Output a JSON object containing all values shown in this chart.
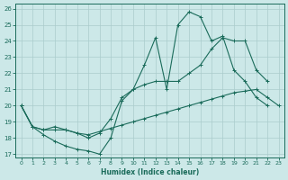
{
  "xlabel": "Humidex (Indice chaleur)",
  "bg_color": "#cce8e8",
  "grid_color": "#aacccc",
  "line_color": "#1a6b5a",
  "xlim": [
    -0.5,
    23.5
  ],
  "ylim": [
    16.8,
    26.3
  ],
  "xticks": [
    0,
    1,
    2,
    3,
    4,
    5,
    6,
    7,
    8,
    9,
    10,
    11,
    12,
    13,
    14,
    15,
    16,
    17,
    18,
    19,
    20,
    21,
    22,
    23
  ],
  "yticks": [
    17,
    18,
    19,
    20,
    21,
    22,
    23,
    24,
    25,
    26
  ],
  "line1_x": [
    0,
    1,
    2,
    3,
    4,
    5,
    6,
    7,
    8,
    9,
    10,
    11,
    12,
    13,
    14,
    15,
    16,
    17,
    18,
    19,
    20,
    21,
    22
  ],
  "line1_y": [
    20.0,
    18.7,
    18.2,
    17.8,
    17.5,
    17.3,
    17.2,
    17.0,
    18.0,
    20.3,
    21.0,
    22.5,
    24.2,
    21.0,
    25.0,
    25.8,
    25.5,
    24.0,
    24.3,
    22.2,
    21.5,
    20.5,
    20.0
  ],
  "line2_x": [
    0,
    1,
    2,
    3,
    4,
    5,
    6,
    7,
    8,
    9,
    10,
    11,
    12,
    13,
    14,
    15,
    16,
    17,
    18,
    19,
    20,
    21,
    22
  ],
  "line2_y": [
    20.0,
    18.7,
    18.5,
    18.7,
    18.5,
    18.3,
    18.0,
    18.3,
    19.2,
    20.5,
    21.0,
    21.3,
    21.5,
    21.5,
    21.5,
    22.0,
    22.5,
    23.5,
    24.2,
    24.0,
    24.0,
    22.2,
    21.5
  ],
  "line3_x": [
    0,
    1,
    2,
    3,
    4,
    5,
    6,
    7,
    8,
    9,
    10,
    11,
    12,
    13,
    14,
    15,
    16,
    17,
    18,
    19,
    20,
    21,
    22,
    23
  ],
  "line3_y": [
    20.0,
    18.7,
    18.5,
    18.5,
    18.5,
    18.3,
    18.2,
    18.4,
    18.6,
    18.8,
    19.0,
    19.2,
    19.4,
    19.6,
    19.8,
    20.0,
    20.2,
    20.4,
    20.6,
    20.8,
    20.9,
    21.0,
    20.5,
    20.0
  ]
}
